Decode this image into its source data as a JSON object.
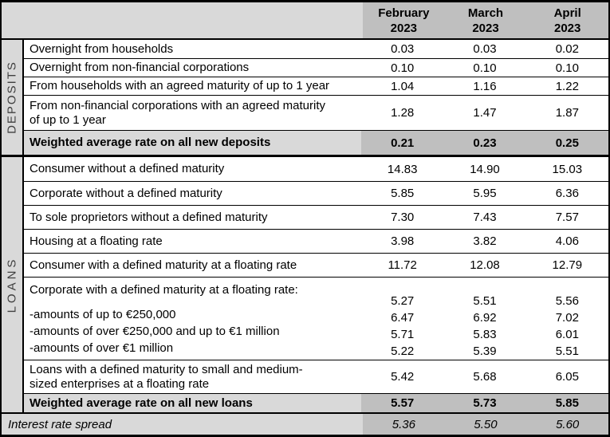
{
  "columns": [
    {
      "month": "February",
      "year": "2023"
    },
    {
      "month": "March",
      "year": "2023"
    },
    {
      "month": "April",
      "year": "2023"
    }
  ],
  "sections": [
    {
      "id": "deposits",
      "vertical_label": "DEPOSITS",
      "rows": [
        {
          "label": "Overnight from households",
          "values": [
            "0.03",
            "0.03",
            "0.02"
          ]
        },
        {
          "label": "Overnight from non-financial corporations",
          "values": [
            "0.10",
            "0.10",
            "0.10"
          ]
        },
        {
          "label": "From households with an agreed maturity of up to 1 year",
          "values": [
            "1.04",
            "1.16",
            "1.22"
          ]
        },
        {
          "label": "From non-financial corporations with an agreed maturity\nof up to 1 year",
          "values": [
            "1.28",
            "1.47",
            "1.87"
          ]
        },
        {
          "type": "summary",
          "label": "Weighted average rate on all new deposits",
          "values": [
            "0.21",
            "0.23",
            "0.25"
          ]
        }
      ]
    },
    {
      "id": "loans",
      "vertical_label": "LOANS",
      "rows": [
        {
          "label": "Consumer without a defined maturity",
          "values": [
            "14.83",
            "14.90",
            "15.03"
          ]
        },
        {
          "label": "Corporate without a defined maturity",
          "values": [
            "5.85",
            "5.95",
            "6.36"
          ]
        },
        {
          "label": "To sole proprietors without a defined maturity",
          "values": [
            "7.30",
            "7.43",
            "7.57"
          ]
        },
        {
          "label": "Housing at a floating rate",
          "values": [
            "3.98",
            "3.82",
            "4.06"
          ]
        },
        {
          "label": "Consumer with a defined maturity at a floating rate",
          "values": [
            "11.72",
            "12.08",
            "12.79"
          ]
        },
        {
          "type": "group",
          "lines": [
            {
              "label": "Corporate with a defined maturity at a floating rate:",
              "values": [
                "5.27",
                "5.51",
                "5.56"
              ]
            },
            {
              "label": "-amounts of up to €250,000",
              "values": [
                "6.47",
                "6.92",
                "7.02"
              ]
            },
            {
              "label": "-amounts of over €250,000 and up to €1 million",
              "values": [
                "5.71",
                "5.83",
                "6.01"
              ]
            },
            {
              "label": "-amounts of over €1 million",
              "values": [
                "5.22",
                "5.39",
                "5.51"
              ]
            }
          ]
        },
        {
          "label": "Loans with a defined maturity to small and medium-\nsized enterprises at a floating rate",
          "values": [
            "5.42",
            "5.68",
            "6.05"
          ]
        },
        {
          "type": "summary",
          "label": "Weighted average rate on all new loans",
          "values": [
            "5.57",
            "5.73",
            "5.85"
          ]
        }
      ]
    }
  ],
  "footer": {
    "label": "Interest rate spread",
    "values": [
      "5.36",
      "5.50",
      "5.60"
    ]
  },
  "colors": {
    "header_fill": "#bfbfbf",
    "summary_label_fill": "#d9d9d9",
    "summary_value_fill": "#bfbfbf",
    "section_label_fill": "#d9d9d9",
    "border": "#000000",
    "vertical_label_color": "#404040"
  }
}
